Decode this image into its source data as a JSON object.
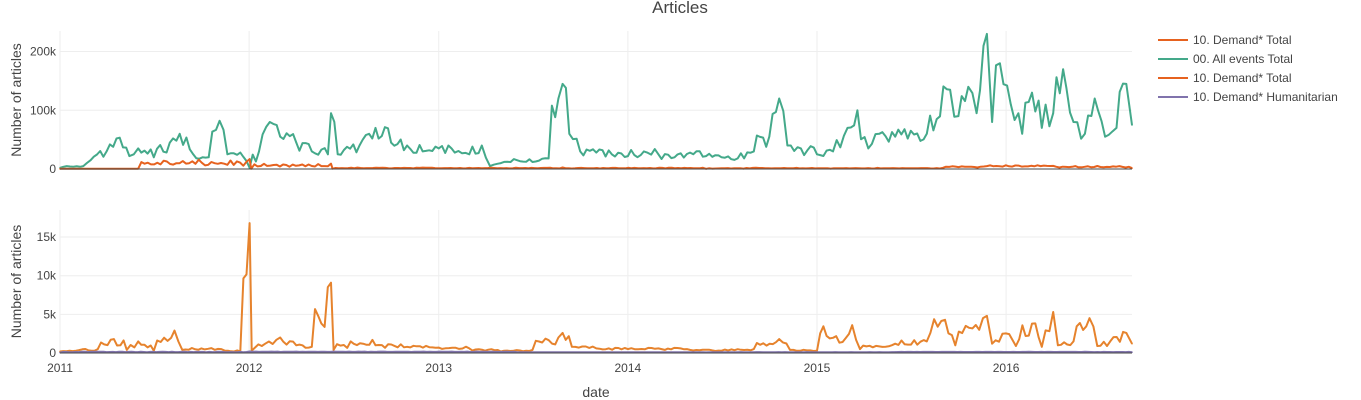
{
  "chart_data": {
    "title": "Articles",
    "xlabel": "date",
    "x_ticks": [
      "2011",
      "2012",
      "2013",
      "2014",
      "2015",
      "2016"
    ],
    "x_range": [
      "2011-01-01",
      "2016-08-31"
    ],
    "grid": true,
    "legend_position": "top-right",
    "legend": [
      {
        "name": "10. Demand*  Total",
        "color": "#e6621f"
      },
      {
        "name": "00. All events Total",
        "color": "#44a98a"
      },
      {
        "name": "10. Demand*  Total",
        "color": "#e6621f"
      },
      {
        "name": "10. Demand* Humanitarian",
        "color": "#8073ac"
      }
    ],
    "subplots": [
      {
        "type": "line",
        "ylabel": "Number of articles",
        "ylim": [
          0,
          235000
        ],
        "y_ticks": [
          0,
          100000,
          200000
        ],
        "y_tick_labels": [
          "0",
          "100k",
          "200k"
        ],
        "series": [
          {
            "name": "00. All events Total",
            "color": "#44a98a",
            "points": [
              [
                "2011-01-01",
                2000
              ],
              [
                "2011-02-15",
                5000
              ],
              [
                "2011-03-01",
                15000
              ],
              [
                "2011-04-01",
                30000
              ],
              [
                "2011-04-20",
                52000
              ],
              [
                "2011-05-15",
                22000
              ],
              [
                "2011-06-01",
                35000
              ],
              [
                "2011-07-01",
                20000
              ],
              [
                "2011-08-01",
                45000
              ],
              [
                "2011-08-20",
                60000
              ],
              [
                "2011-09-15",
                25000
              ],
              [
                "2011-10-15",
                20000
              ],
              [
                "2011-11-05",
                82000
              ],
              [
                "2011-11-20",
                25000
              ],
              [
                "2011-12-15",
                28000
              ],
              [
                "2012-01-02",
                2000
              ],
              [
                "2012-01-20",
                30000
              ],
              [
                "2012-02-10",
                80000
              ],
              [
                "2012-03-01",
                55000
              ],
              [
                "2012-04-01",
                45000
              ],
              [
                "2012-05-01",
                30000
              ],
              [
                "2012-06-01",
                25000
              ],
              [
                "2012-06-07",
                95000
              ],
              [
                "2012-06-20",
                25000
              ],
              [
                "2012-08-01",
                40000
              ],
              [
                "2012-09-01",
                70000
              ],
              [
                "2012-10-01",
                45000
              ],
              [
                "2012-11-01",
                40000
              ],
              [
                "2012-12-01",
                30000
              ],
              [
                "2013-01-01",
                35000
              ],
              [
                "2013-02-01",
                28000
              ],
              [
                "2013-03-01",
                25000
              ],
              [
                "2013-03-25",
                40000
              ],
              [
                "2013-04-10",
                5000
              ],
              [
                "2013-05-01",
                10000
              ],
              [
                "2013-06-01",
                15000
              ],
              [
                "2013-07-01",
                12000
              ],
              [
                "2013-08-01",
                18000
              ],
              [
                "2013-08-20",
                120000
              ],
              [
                "2013-08-28",
                145000
              ],
              [
                "2013-09-10",
                60000
              ],
              [
                "2013-10-01",
                30000
              ],
              [
                "2013-11-01",
                28000
              ],
              [
                "2013-12-01",
                25000
              ],
              [
                "2014-01-01",
                22000
              ],
              [
                "2014-02-01",
                30000
              ],
              [
                "2014-03-01",
                25000
              ],
              [
                "2014-04-01",
                20000
              ],
              [
                "2014-05-01",
                28000
              ],
              [
                "2014-06-01",
                22000
              ],
              [
                "2014-07-01",
                20000
              ],
              [
                "2014-08-01",
                18000
              ],
              [
                "2014-09-01",
                30000
              ],
              [
                "2014-10-01",
                55000
              ],
              [
                "2014-10-20",
                120000
              ],
              [
                "2014-11-05",
                40000
              ],
              [
                "2014-12-01",
                35000
              ],
              [
                "2015-01-01",
                25000
              ],
              [
                "2015-02-01",
                30000
              ],
              [
                "2015-03-01",
                70000
              ],
              [
                "2015-03-20",
                100000
              ],
              [
                "2015-04-10",
                35000
              ],
              [
                "2015-05-01",
                60000
              ],
              [
                "2015-06-01",
                55000
              ],
              [
                "2015-07-01",
                65000
              ],
              [
                "2015-08-01",
                60000
              ],
              [
                "2015-08-20",
                85000
              ],
              [
                "2015-09-15",
                135000
              ],
              [
                "2015-10-01",
                90000
              ],
              [
                "2015-10-20",
                140000
              ],
              [
                "2015-11-05",
                95000
              ],
              [
                "2015-11-25",
                230000
              ],
              [
                "2015-12-05",
                80000
              ],
              [
                "2015-12-20",
                180000
              ],
              [
                "2016-01-10",
                110000
              ],
              [
                "2016-02-01",
                60000
              ],
              [
                "2016-02-20",
                130000
              ],
              [
                "2016-03-10",
                70000
              ],
              [
                "2016-04-01",
                95000
              ],
              [
                "2016-04-20",
                170000
              ],
              [
                "2016-05-10",
                80000
              ],
              [
                "2016-06-01",
                60000
              ],
              [
                "2016-06-20",
                120000
              ],
              [
                "2016-07-10",
                55000
              ],
              [
                "2016-08-01",
                70000
              ],
              [
                "2016-08-20",
                145000
              ],
              [
                "2016-08-31",
                75000
              ]
            ]
          },
          {
            "name": "10. Demand*  Total",
            "color": "#e6621f",
            "points": [
              [
                "2011-01-01",
                300
              ],
              [
                "2011-06-01",
                500
              ],
              [
                "2012-01-02",
                16800
              ],
              [
                "2012-01-05",
                400
              ],
              [
                "2012-06-07",
                9000
              ],
              [
                "2012-06-10",
                500
              ],
              [
                "2013-08-28",
                2500
              ],
              [
                "2014-06-01",
                300
              ],
              [
                "2015-09-01",
                2000
              ],
              [
                "2015-11-25",
                5000
              ],
              [
                "2016-04-01",
                5200
              ],
              [
                "2016-08-31",
                1500
              ]
            ]
          }
        ]
      },
      {
        "type": "line",
        "ylabel": "Number of articles",
        "ylim": [
          0,
          18500
        ],
        "y_ticks": [
          0,
          5000,
          10000,
          15000
        ],
        "y_tick_labels": [
          "0",
          "5k",
          "10k",
          "15k"
        ],
        "series": [
          {
            "name": "10. Demand*  Total",
            "color": "#e6832d",
            "points": [
              [
                "2011-01-01",
                200
              ],
              [
                "2011-02-01",
                300
              ],
              [
                "2011-03-15",
                500
              ],
              [
                "2011-04-15",
                1800
              ],
              [
                "2011-05-10",
                400
              ],
              [
                "2011-06-01",
                1500
              ],
              [
                "2011-07-01",
                300
              ],
              [
                "2011-08-10",
                2900
              ],
              [
                "2011-08-25",
                400
              ],
              [
                "2011-10-01",
                600
              ],
              [
                "2011-11-15",
                300
              ],
              [
                "2011-12-15",
                200
              ],
              [
                "2012-01-02",
                16800
              ],
              [
                "2012-01-06",
                300
              ],
              [
                "2012-02-01",
                1200
              ],
              [
                "2012-03-01",
                2000
              ],
              [
                "2012-04-01",
                1000
              ],
              [
                "2012-05-01",
                800
              ],
              [
                "2012-06-07",
                9100
              ],
              [
                "2012-06-12",
                400
              ],
              [
                "2012-07-15",
                1500
              ],
              [
                "2012-09-01",
                1000
              ],
              [
                "2012-11-01",
                800
              ],
              [
                "2013-01-01",
                700
              ],
              [
                "2013-03-01",
                600
              ],
              [
                "2013-05-01",
                200
              ],
              [
                "2013-07-01",
                400
              ],
              [
                "2013-08-20",
                2000
              ],
              [
                "2013-08-28",
                2600
              ],
              [
                "2013-09-15",
                800
              ],
              [
                "2013-11-01",
                600
              ],
              [
                "2014-01-01",
                500
              ],
              [
                "2014-03-01",
                600
              ],
              [
                "2014-05-01",
                400
              ],
              [
                "2014-07-01",
                300
              ],
              [
                "2014-09-01",
                500
              ],
              [
                "2014-10-20",
                1800
              ],
              [
                "2014-11-10",
                400
              ],
              [
                "2015-01-01",
                300
              ],
              [
                "2015-03-10",
                3600
              ],
              [
                "2015-03-25",
                500
              ],
              [
                "2015-06-01",
                1200
              ],
              [
                "2015-08-01",
                1500
              ],
              [
                "2015-09-05",
                4300
              ],
              [
                "2015-09-25",
                1000
              ],
              [
                "2015-10-15",
                3500
              ],
              [
                "2015-11-10",
                3000
              ],
              [
                "2015-11-25",
                4800
              ],
              [
                "2015-12-05",
                1200
              ],
              [
                "2015-12-25",
                2500
              ],
              [
                "2016-01-20",
                900
              ],
              [
                "2016-02-20",
                3800
              ],
              [
                "2016-03-10",
                800
              ],
              [
                "2016-04-01",
                5300
              ],
              [
                "2016-04-10",
                1000
              ],
              [
                "2016-05-10",
                1500
              ],
              [
                "2016-06-10",
                4500
              ],
              [
                "2016-06-25",
                900
              ],
              [
                "2016-07-20",
                1500
              ],
              [
                "2016-08-20",
                2600
              ],
              [
                "2016-08-31",
                1200
              ]
            ]
          },
          {
            "name": "10. Demand* Humanitarian",
            "color": "#8073ac",
            "points": [
              [
                "2011-01-01",
                50
              ],
              [
                "2012-01-02",
                200
              ],
              [
                "2013-06-01",
                100
              ],
              [
                "2014-06-01",
                80
              ],
              [
                "2015-06-01",
                120
              ],
              [
                "2016-06-01",
                150
              ],
              [
                "2016-08-31",
                100
              ]
            ]
          }
        ]
      }
    ]
  }
}
